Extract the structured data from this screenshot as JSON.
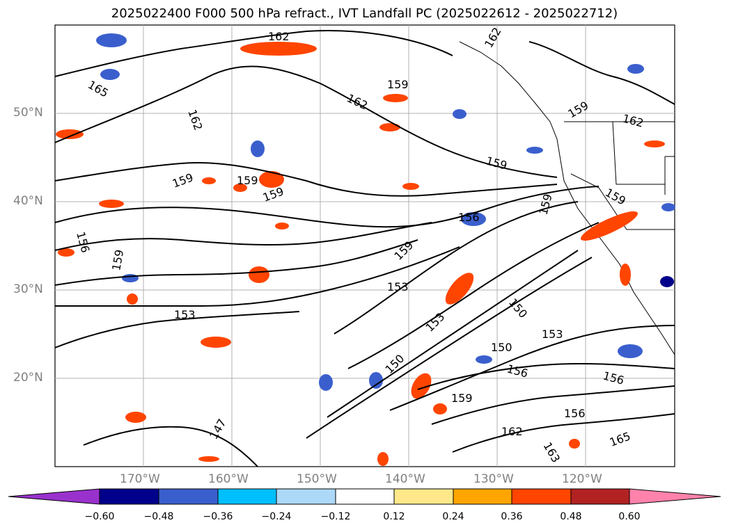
{
  "title": "2025022400 F000 500 hPa refract., IVT Landfall PC (2025022612 - 2025022712)",
  "map": {
    "lon_range": [
      -180,
      -110
    ],
    "lat_range": [
      10,
      60
    ],
    "gridlines": true,
    "lat_labels": [
      "50°N",
      "40°N",
      "30°N",
      "20°N"
    ],
    "lon_labels": [
      "170°W",
      "160°W",
      "150°W",
      "140°W",
      "130°W",
      "120°W"
    ],
    "contour_labels": [
      "162",
      "162",
      "165",
      "162",
      "159",
      "162",
      "159",
      "162",
      "159",
      "159",
      "159",
      "159",
      "159",
      "156",
      "156",
      "159",
      "159",
      "153",
      "153",
      "153",
      "150",
      "150",
      "150",
      "153",
      "156",
      "156",
      "159",
      "147",
      "156",
      "159",
      "162",
      "163",
      "165"
    ]
  },
  "colorbar": {
    "ticks": [
      "−0.60",
      "−0.48",
      "−0.36",
      "−0.24",
      "−0.12",
      "0.12",
      "0.24",
      "0.36",
      "0.48",
      "0.60"
    ],
    "colors": [
      "#9932cc",
      "#00008b",
      "#3a5fcd",
      "#00bfff",
      "#add8f8",
      "#ffffff",
      "#ffe88a",
      "#ffa500",
      "#ff4500",
      "#b22222",
      "#ff82ab"
    ],
    "extend": "both"
  }
}
